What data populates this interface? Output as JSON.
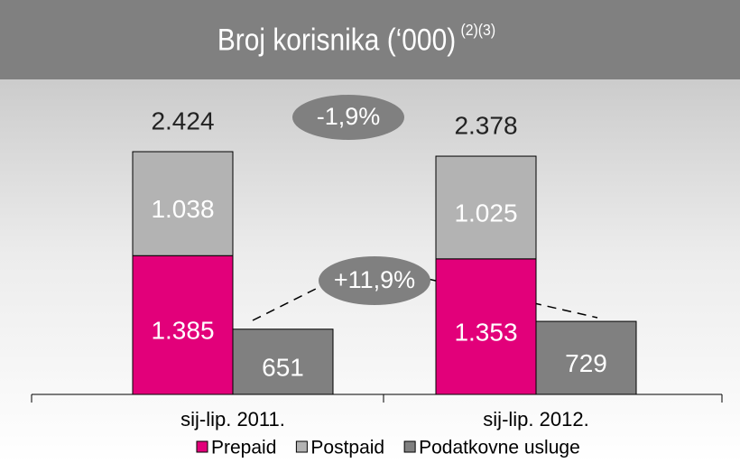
{
  "chart_data": {
    "type": "bar",
    "title": "Broj korisnika (‘000)",
    "title_note": "(2)(3)",
    "categories": [
      "sij-lip. 2011.",
      "sij-lip. 2012."
    ],
    "series": [
      {
        "name": "Prepaid",
        "color": "#e2007a",
        "values": [
          1385,
          1353
        ],
        "value_labels": [
          "1.385",
          "1.353"
        ],
        "stack": "a"
      },
      {
        "name": "Postpaid",
        "color": "#b3b3b3",
        "values": [
          1038,
          1025
        ],
        "value_labels": [
          "1.038",
          "1.025"
        ],
        "stack": "a"
      },
      {
        "name": "Podatkovne usluge",
        "color": "#808080",
        "values": [
          651,
          729
        ],
        "value_labels": [
          "651",
          "729"
        ],
        "stack": "b"
      }
    ],
    "totals": [
      2424,
      2378
    ],
    "total_labels": [
      "2.424",
      "2.378"
    ],
    "annotations": [
      {
        "text": "-1,9%"
      },
      {
        "text": "+11,9%"
      }
    ]
  }
}
